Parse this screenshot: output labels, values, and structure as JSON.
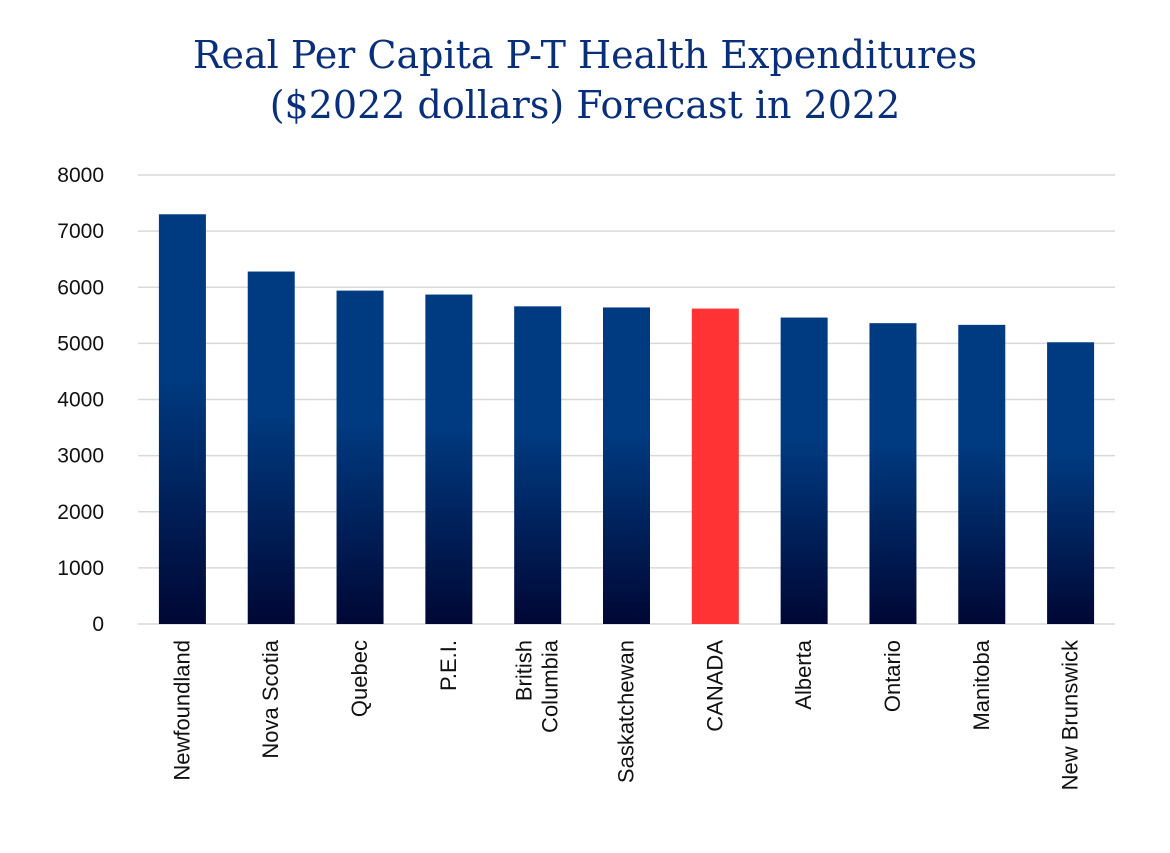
{
  "chart_data": {
    "type": "bar",
    "title_lines": [
      "Real Per Capita P-T Health Expenditures",
      "($2022 dollars) Forecast in 2022"
    ],
    "categories": [
      [
        "Newfoundland"
      ],
      [
        "Nova Scotia"
      ],
      [
        "Quebec"
      ],
      [
        "P.E.I."
      ],
      [
        "British",
        "Columbia"
      ],
      [
        "Saskatchewan"
      ],
      [
        "CANADA"
      ],
      [
        "Alberta"
      ],
      [
        "Ontario"
      ],
      [
        "Manitoba"
      ],
      [
        "New Brunswick"
      ]
    ],
    "values": [
      7300,
      6280,
      5940,
      5870,
      5660,
      5640,
      5620,
      5460,
      5360,
      5330,
      5020
    ],
    "highlight_index": 6,
    "ylim": [
      0,
      8000
    ],
    "yticks": [
      0,
      1000,
      2000,
      3000,
      4000,
      5000,
      6000,
      7000,
      8000
    ],
    "xlabel": "",
    "ylabel": "",
    "grid": true,
    "colors": {
      "bar_top": "#003a80",
      "bar_bottom": "#000734",
      "highlight": "#ff3333",
      "grid": "#d9d9d9",
      "title": "#0a2f7a"
    }
  }
}
